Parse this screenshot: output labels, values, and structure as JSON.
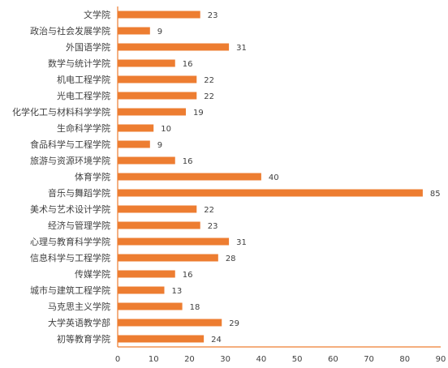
{
  "chart_data": {
    "type": "bar",
    "orientation": "horizontal",
    "categories": [
      "文学院",
      "政治与社会发展学院",
      "外国语学院",
      "数学与统计学院",
      "机电工程学院",
      "光电工程学院",
      "化学化工与材料科学学院",
      "生命科学学院",
      "食品科学与工程学院",
      "旅游与资源环境学院",
      "体育学院",
      "音乐与舞蹈学院",
      "美术与艺术设计学院",
      "经济与管理学院",
      "心理与教育科学学院",
      "信息科学与工程学院",
      "传媒学院",
      "城市与建筑工程学院",
      "马克思主义学院",
      "大学英语教学部",
      "初等教育学院"
    ],
    "values": [
      23,
      9,
      31,
      16,
      22,
      22,
      19,
      10,
      9,
      16,
      40,
      85,
      22,
      23,
      31,
      28,
      16,
      13,
      18,
      29,
      24
    ],
    "xlim": [
      0,
      90
    ],
    "xticks": [
      0,
      10,
      20,
      30,
      40,
      50,
      60,
      70,
      80,
      90
    ],
    "title": "",
    "xlabel": "",
    "ylabel": "",
    "grid": false,
    "bar_color": "#ED7D31"
  }
}
